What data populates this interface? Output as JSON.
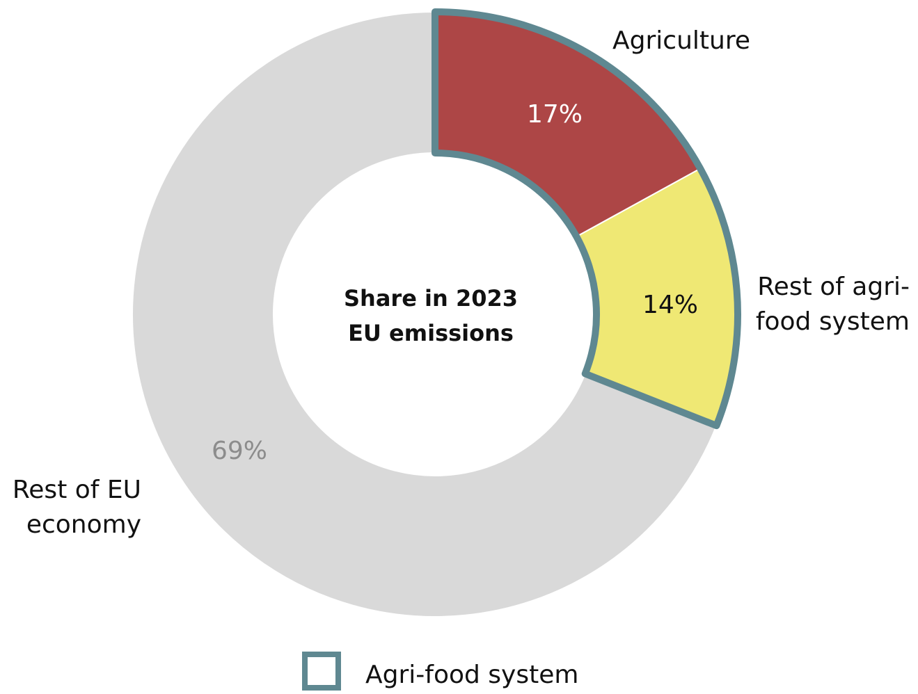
{
  "chart_data": {
    "type": "pie",
    "center_title": {
      "line1": "Share in 2023",
      "line2": "EU emissions"
    },
    "slices": [
      {
        "name_lines": [
          "Agriculture"
        ],
        "value": 17,
        "label": "17%",
        "color": "#ad4646",
        "label_color": "#ffffff"
      },
      {
        "name_lines": [
          "Rest of agri-",
          "food system"
        ],
        "value": 14,
        "label": "14%",
        "color": "#efe874",
        "label_color": "#111111"
      },
      {
        "name_lines": [
          "Rest of EU",
          "economy"
        ],
        "value": 69,
        "label": "69%",
        "color": "#d9d9d9",
        "label_color": "#8c8c8c"
      }
    ],
    "group_highlight": {
      "label": "Agri-food system",
      "color": "#5f8891"
    },
    "legend": {
      "position": "bottom-center",
      "label": "Agri-food system"
    }
  }
}
